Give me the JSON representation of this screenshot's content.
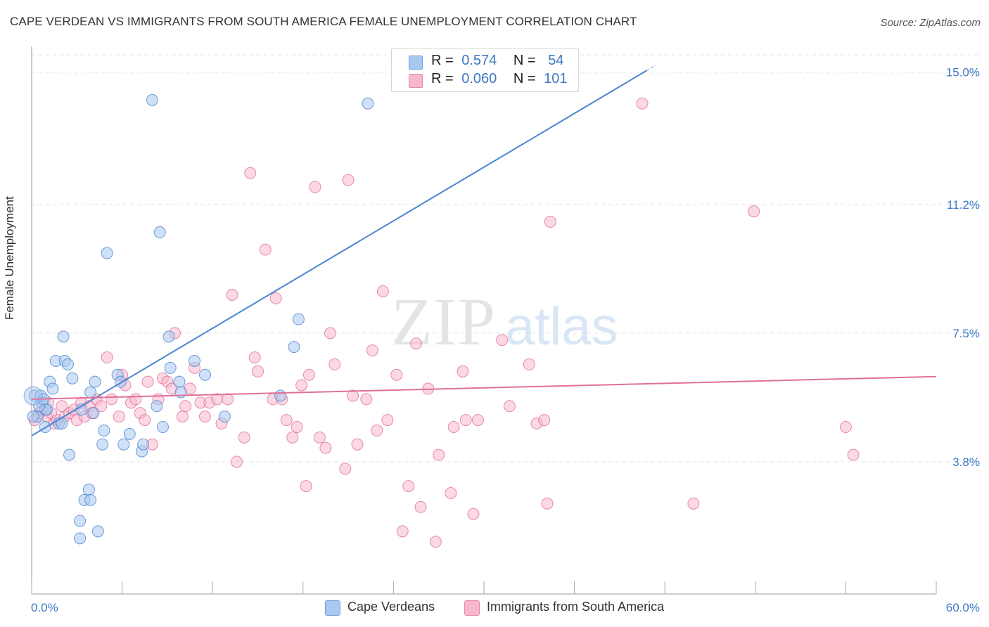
{
  "header": {
    "title": "CAPE VERDEAN VS IMMIGRANTS FROM SOUTH AMERICA FEMALE UNEMPLOYMENT CORRELATION CHART",
    "source": "Source: ZipAtlas.com"
  },
  "watermark": {
    "zip": "ZIP",
    "atlas": "atlas"
  },
  "legend": {
    "rows": [
      {
        "r_label": "R =",
        "r_value": "0.574",
        "n_label": "N =",
        "n_value": "54",
        "color": "#a9c8f0"
      },
      {
        "r_label": "R =",
        "r_value": "0.060",
        "n_label": "N =",
        "n_value": "101",
        "color": "#f7b8cc"
      }
    ]
  },
  "bottom_legend": {
    "items": [
      {
        "label": "Cape Verdeans",
        "color": "#a9c8f0"
      },
      {
        "label": "Immigrants from South America",
        "color": "#f7b8cc"
      }
    ]
  },
  "chart_data": {
    "type": "scatter",
    "title": "CAPE VERDEAN VS IMMIGRANTS FROM SOUTH AMERICA FEMALE UNEMPLOYMENT CORRELATION CHART",
    "xlabel": "",
    "ylabel": "Female Unemployment",
    "xlim": [
      0,
      60
    ],
    "ylim": [
      0,
      15.5
    ],
    "x_tick_labels": [
      "0.0%",
      "60.0%"
    ],
    "y_ticks": [
      3.8,
      7.5,
      11.2,
      15.0
    ],
    "y_tick_labels": [
      "3.8%",
      "7.5%",
      "11.2%",
      "15.0%"
    ],
    "grid": "horizontal dashed",
    "legend_position": "top-center",
    "series": [
      {
        "name": "Cape Verdeans",
        "color": "#4a86d0",
        "fill": "#a9c8f0",
        "trend": {
          "x": [
            0,
            40.8
          ],
          "y": [
            4.55,
            15.05
          ]
        },
        "points": [
          [
            0.2,
            5.7
          ],
          [
            0.4,
            5.1
          ],
          [
            0.6,
            5.7
          ],
          [
            0.7,
            5.5
          ],
          [
            0.9,
            4.8
          ],
          [
            0.9,
            5.3
          ],
          [
            1.0,
            5.3
          ],
          [
            1.2,
            6.1
          ],
          [
            1.4,
            5.9
          ],
          [
            1.6,
            6.7
          ],
          [
            1.8,
            4.9
          ],
          [
            2.0,
            4.9
          ],
          [
            2.1,
            7.4
          ],
          [
            2.2,
            6.7
          ],
          [
            2.4,
            6.6
          ],
          [
            2.5,
            4.0
          ],
          [
            2.7,
            6.2
          ],
          [
            3.2,
            2.1
          ],
          [
            3.2,
            1.6
          ],
          [
            3.3,
            5.3
          ],
          [
            3.5,
            2.7
          ],
          [
            3.8,
            3.0
          ],
          [
            3.9,
            5.8
          ],
          [
            3.9,
            2.7
          ],
          [
            4.1,
            5.2
          ],
          [
            4.2,
            6.1
          ],
          [
            4.4,
            1.8
          ],
          [
            4.7,
            4.3
          ],
          [
            4.8,
            4.7
          ],
          [
            5.0,
            9.8
          ],
          [
            5.7,
            6.3
          ],
          [
            5.9,
            6.1
          ],
          [
            6.1,
            4.3
          ],
          [
            6.5,
            4.6
          ],
          [
            7.3,
            4.1
          ],
          [
            7.4,
            4.3
          ],
          [
            8.0,
            14.2
          ],
          [
            8.3,
            5.4
          ],
          [
            8.5,
            10.4
          ],
          [
            8.7,
            4.8
          ],
          [
            9.1,
            7.4
          ],
          [
            9.2,
            6.5
          ],
          [
            9.8,
            6.1
          ],
          [
            9.9,
            5.8
          ],
          [
            10.8,
            6.7
          ],
          [
            11.5,
            6.3
          ],
          [
            12.8,
            5.1
          ],
          [
            16.5,
            5.7
          ],
          [
            17.4,
            7.1
          ],
          [
            17.7,
            7.9
          ],
          [
            22.3,
            14.1
          ],
          [
            0.1,
            5.1
          ],
          [
            0.5,
            5.4
          ],
          [
            0.8,
            5.6
          ]
        ]
      },
      {
        "name": "Immigrants from South America",
        "color": "#e0709a",
        "fill": "#f7b8cc",
        "trend": {
          "x": [
            0,
            60
          ],
          "y": [
            5.6,
            6.25
          ]
        },
        "points": [
          [
            0.2,
            5.0
          ],
          [
            0.5,
            5.2
          ],
          [
            0.7,
            5.3
          ],
          [
            1.0,
            5.1
          ],
          [
            1.1,
            5.5
          ],
          [
            1.3,
            5.2
          ],
          [
            1.5,
            4.9
          ],
          [
            1.7,
            5.0
          ],
          [
            2.0,
            5.4
          ],
          [
            2.2,
            5.1
          ],
          [
            2.5,
            5.2
          ],
          [
            2.8,
            5.3
          ],
          [
            3.0,
            5.0
          ],
          [
            3.3,
            5.5
          ],
          [
            3.5,
            5.1
          ],
          [
            3.8,
            5.4
          ],
          [
            4.0,
            5.2
          ],
          [
            4.3,
            5.6
          ],
          [
            4.6,
            5.4
          ],
          [
            5.0,
            6.8
          ],
          [
            5.3,
            5.6
          ],
          [
            5.8,
            5.1
          ],
          [
            6.0,
            6.3
          ],
          [
            6.2,
            6.0
          ],
          [
            6.6,
            5.5
          ],
          [
            6.9,
            5.6
          ],
          [
            7.2,
            5.2
          ],
          [
            7.5,
            5.0
          ],
          [
            7.7,
            6.1
          ],
          [
            8.0,
            4.3
          ],
          [
            8.4,
            5.6
          ],
          [
            8.7,
            6.2
          ],
          [
            9.0,
            6.1
          ],
          [
            9.3,
            5.9
          ],
          [
            9.5,
            7.5
          ],
          [
            10.0,
            5.1
          ],
          [
            10.2,
            5.4
          ],
          [
            10.5,
            5.9
          ],
          [
            10.8,
            6.5
          ],
          [
            11.2,
            5.5
          ],
          [
            11.5,
            5.1
          ],
          [
            11.8,
            5.5
          ],
          [
            12.3,
            5.6
          ],
          [
            12.6,
            4.9
          ],
          [
            13.0,
            5.6
          ],
          [
            13.3,
            8.6
          ],
          [
            13.6,
            3.8
          ],
          [
            14.1,
            4.5
          ],
          [
            14.5,
            12.1
          ],
          [
            14.8,
            6.8
          ],
          [
            15.0,
            6.4
          ],
          [
            15.5,
            9.9
          ],
          [
            16.0,
            5.6
          ],
          [
            16.2,
            8.5
          ],
          [
            16.6,
            5.6
          ],
          [
            16.9,
            5.0
          ],
          [
            17.3,
            4.5
          ],
          [
            17.6,
            4.8
          ],
          [
            17.9,
            6.0
          ],
          [
            18.2,
            3.1
          ],
          [
            18.4,
            6.3
          ],
          [
            18.8,
            11.7
          ],
          [
            19.1,
            4.5
          ],
          [
            19.5,
            4.2
          ],
          [
            19.8,
            7.5
          ],
          [
            20.1,
            6.6
          ],
          [
            20.8,
            3.6
          ],
          [
            21.0,
            11.9
          ],
          [
            21.3,
            5.7
          ],
          [
            21.6,
            4.3
          ],
          [
            22.2,
            5.6
          ],
          [
            22.6,
            7.0
          ],
          [
            22.9,
            4.7
          ],
          [
            23.3,
            8.7
          ],
          [
            23.6,
            5.0
          ],
          [
            24.2,
            6.3
          ],
          [
            24.6,
            1.8
          ],
          [
            25.0,
            3.1
          ],
          [
            25.5,
            7.2
          ],
          [
            25.8,
            2.5
          ],
          [
            26.3,
            5.9
          ],
          [
            26.8,
            1.5
          ],
          [
            27.0,
            4.0
          ],
          [
            27.8,
            2.9
          ],
          [
            28.0,
            4.8
          ],
          [
            28.6,
            6.4
          ],
          [
            28.8,
            5.0
          ],
          [
            29.3,
            2.3
          ],
          [
            29.6,
            5.0
          ],
          [
            31.2,
            7.3
          ],
          [
            31.7,
            5.4
          ],
          [
            33.0,
            6.6
          ],
          [
            33.5,
            4.9
          ],
          [
            34.2,
            2.6
          ],
          [
            34.4,
            10.7
          ],
          [
            40.5,
            14.1
          ],
          [
            43.9,
            2.6
          ],
          [
            47.9,
            11.0
          ],
          [
            54.0,
            4.8
          ],
          [
            54.5,
            4.0
          ],
          [
            34.0,
            5.0
          ]
        ]
      }
    ]
  }
}
